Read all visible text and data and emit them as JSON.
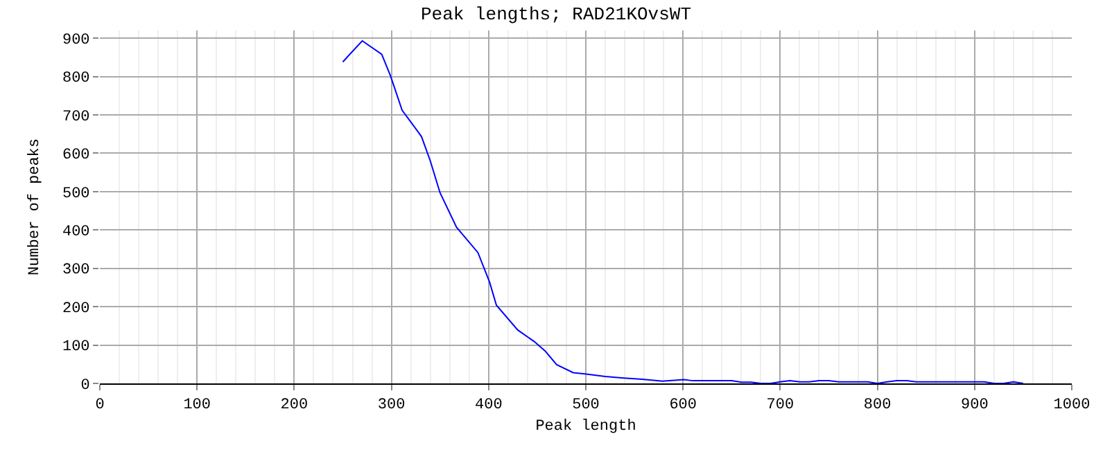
{
  "chart_data": {
    "type": "line",
    "title": "Peak lengths; RAD21KOvsWT",
    "xlabel": "Peak length",
    "ylabel": "Number of peaks",
    "xlim": [
      0,
      1000
    ],
    "xticks": [
      0,
      100,
      200,
      300,
      400,
      500,
      600,
      700,
      800,
      900,
      1000
    ],
    "ylim": [
      0,
      920
    ],
    "yticks": [
      0,
      100,
      200,
      300,
      400,
      500,
      600,
      700,
      800,
      900
    ],
    "grid": true,
    "series": [
      {
        "color": "#0000ff",
        "x": [
          250,
          270,
          290,
          299,
          311,
          325,
          331,
          340,
          350,
          367,
          389,
          401,
          408,
          430,
          447,
          458,
          470,
          487,
          499,
          520,
          539,
          558,
          579,
          601,
          610,
          650,
          660,
          670,
          680,
          690,
          700,
          710,
          720,
          730,
          740,
          750,
          760,
          790,
          800,
          810,
          820,
          830,
          840,
          910,
          920,
          930,
          940,
          950
        ],
        "values": [
          838,
          893,
          858,
          802,
          712,
          664,
          643,
          580,
          497,
          407,
          341,
          264,
          204,
          139,
          109,
          85,
          49,
          28,
          25,
          18,
          14,
          11,
          6,
          10,
          7,
          7,
          3,
          3,
          0,
          0,
          4,
          7,
          4,
          4,
          7,
          7,
          4,
          4,
          0,
          4,
          7,
          7,
          4,
          4,
          0,
          0,
          4,
          0
        ]
      }
    ]
  }
}
